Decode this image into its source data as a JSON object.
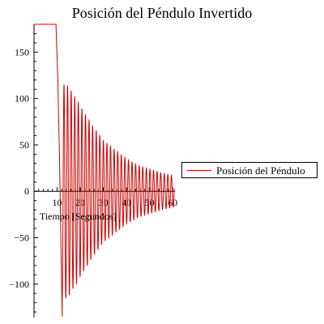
{
  "chart_data": {
    "type": "line",
    "title": "Posición del Péndulo Invertido",
    "xlabel": "Tiempo [Segundos]",
    "ylabel": "",
    "xlim": [
      0,
      61
    ],
    "ylim": [
      -136,
      180
    ],
    "x_ticks": [
      10,
      20,
      30,
      40,
      50,
      60
    ],
    "y_ticks": [
      -100,
      -50,
      0,
      50,
      100,
      150
    ],
    "grid": false,
    "legend_position": "right",
    "series": [
      {
        "name": "Posición del Péndulo",
        "color": "#cc0000",
        "description_points": [
          [
            0,
            180
          ],
          [
            9.5,
            180
          ],
          [
            10.3,
            120
          ],
          [
            11,
            40
          ],
          [
            12.2,
            -135
          ],
          [
            13.8,
            115
          ],
          [
            15.3,
            -112
          ],
          [
            16.8,
            105
          ],
          [
            18.3,
            -100
          ],
          [
            20,
            92
          ],
          [
            25,
            72
          ],
          [
            30,
            55
          ],
          [
            35,
            45
          ],
          [
            40,
            35
          ],
          [
            45,
            28
          ],
          [
            50,
            24
          ],
          [
            55,
            20
          ],
          [
            60,
            17
          ]
        ]
      }
    ]
  }
}
